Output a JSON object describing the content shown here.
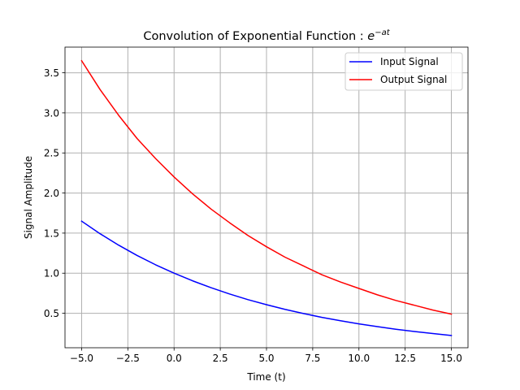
{
  "chart_data": {
    "type": "line",
    "title_text": "Convolution of Exponential Function : ",
    "title_math_base": "e",
    "title_math_exponent": "−at",
    "xlabel": "Time (t)",
    "ylabel": "Signal Amplitude",
    "xlim": [
      -5.9,
      15.9
    ],
    "ylim": [
      0.07,
      3.82
    ],
    "xticks": [
      -5.0,
      -2.5,
      0.0,
      2.5,
      5.0,
      7.5,
      10.0,
      12.5,
      15.0
    ],
    "xtick_labels": [
      "−5.0",
      "−2.5",
      "0.0",
      "2.5",
      "5.0",
      "7.5",
      "10.0",
      "12.5",
      "15.0"
    ],
    "yticks": [
      0.5,
      1.0,
      1.5,
      2.0,
      2.5,
      3.0,
      3.5
    ],
    "ytick_labels": [
      "0.5",
      "1.0",
      "1.5",
      "2.0",
      "2.5",
      "3.0",
      "3.5"
    ],
    "grid": true,
    "legend_position": "top-right",
    "x": [
      -5,
      -4,
      -3,
      -2,
      -1,
      0,
      1,
      2,
      3,
      4,
      5,
      6,
      7,
      8,
      9,
      10,
      11,
      12,
      13,
      14,
      15
    ],
    "series": [
      {
        "name": "Input Signal",
        "color": "#0000ff",
        "values": [
          1.649,
          1.492,
          1.35,
          1.221,
          1.105,
          1.0,
          0.905,
          0.819,
          0.741,
          0.67,
          0.607,
          0.549,
          0.497,
          0.449,
          0.407,
          0.368,
          0.333,
          0.301,
          0.273,
          0.247,
          0.223
        ]
      },
      {
        "name": "Output Signal",
        "color": "#ff0000",
        "values": [
          3.65,
          3.29,
          2.97,
          2.68,
          2.43,
          2.2,
          1.99,
          1.8,
          1.63,
          1.47,
          1.33,
          1.2,
          1.09,
          0.98,
          0.89,
          0.81,
          0.73,
          0.66,
          0.6,
          0.54,
          0.49
        ]
      }
    ]
  }
}
